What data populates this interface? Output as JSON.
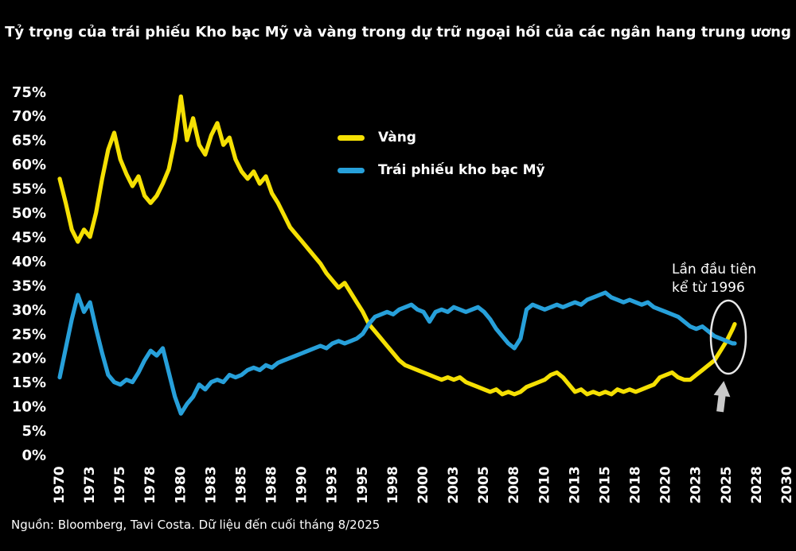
{
  "title": "Tỷ trọng của trái phiếu Kho bạc Mỹ và vàng trong dự trữ ngoại hối của các ngân hang trung ương",
  "source_note": "Nguồn: Bloomberg, Tavi Costa. Dữ liệu đến cuối tháng 8/2025",
  "annotation": {
    "line1": "Lần đầu tiên",
    "line2": "kể từ 1996"
  },
  "legend": [
    {
      "label": "Vàng",
      "color": "#f5e003"
    },
    {
      "label": "Trái phiếu kho bạc Mỹ",
      "color": "#27a0da"
    }
  ],
  "colors": {
    "background": "#000000",
    "text": "#ffffff",
    "gold": "#f5e003",
    "treasury": "#27a0da",
    "ellipse": "#e8e8e8",
    "arrow": "#c9c9c9"
  },
  "chart_data": {
    "type": "line",
    "title": "Tỷ trọng của trái phiếu Kho bạc Mỹ và vàng trong dự trữ ngoại hối của các ngân hang trung ương",
    "xlabel": "",
    "ylabel": "",
    "ylim": [
      0,
      75
    ],
    "xlim": [
      1970,
      2030
    ],
    "grid": false,
    "legend_position": "upper-center-left",
    "y_ticks": [
      0,
      5,
      10,
      15,
      20,
      25,
      30,
      35,
      40,
      45,
      50,
      55,
      60,
      65,
      70,
      75
    ],
    "y_tick_suffix": "%",
    "x_tick_labels": [
      "1970",
      "1973",
      "1975",
      "1978",
      "1980",
      "1983",
      "1985",
      "1988",
      "1990",
      "1993",
      "1995",
      "1998",
      "2000",
      "2003",
      "2005",
      "2008",
      "2010",
      "2013",
      "2015",
      "2018",
      "2020",
      "2023",
      "2025",
      "2028",
      "2030"
    ],
    "x_tick_interval_years": 2.5,
    "x": [
      1970,
      1970.5,
      1971,
      1971.5,
      1972,
      1972.5,
      1973,
      1973.5,
      1974,
      1974.5,
      1975,
      1975.5,
      1976,
      1976.5,
      1977,
      1977.5,
      1978,
      1978.5,
      1979,
      1979.5,
      1980,
      1980.5,
      1981,
      1981.5,
      1982,
      1982.5,
      1983,
      1983.5,
      1984,
      1984.5,
      1985,
      1985.5,
      1986,
      1986.5,
      1987,
      1987.5,
      1988,
      1988.5,
      1989,
      1989.5,
      1990,
      1990.5,
      1991,
      1991.5,
      1992,
      1992.5,
      1993,
      1993.5,
      1994,
      1994.5,
      1995,
      1995.5,
      1996,
      1996.5,
      1997,
      1997.5,
      1998,
      1998.5,
      1999,
      1999.5,
      2000,
      2000.5,
      2001,
      2001.5,
      2002,
      2002.5,
      2003,
      2003.5,
      2004,
      2004.5,
      2005,
      2005.5,
      2006,
      2006.5,
      2007,
      2007.5,
      2008,
      2008.5,
      2009,
      2009.5,
      2010,
      2010.5,
      2011,
      2011.5,
      2012,
      2012.5,
      2013,
      2013.5,
      2014,
      2014.5,
      2015,
      2015.5,
      2016,
      2016.5,
      2017,
      2017.5,
      2018,
      2018.5,
      2019,
      2019.5,
      2020,
      2020.5,
      2021,
      2021.5,
      2022,
      2022.5,
      2023,
      2023.5,
      2024,
      2024.5,
      2025,
      2025.5,
      2025.67
    ],
    "series": [
      {
        "name": "Vàng",
        "color": "#f5e003",
        "values": [
          57,
          52,
          46.5,
          44,
          46.5,
          45,
          50,
          57,
          63,
          66.5,
          61,
          58,
          55.5,
          57.5,
          53.5,
          52,
          53.5,
          56,
          59,
          65,
          74,
          65,
          69.5,
          64,
          62,
          66,
          68.5,
          64,
          65.5,
          61,
          58.5,
          57,
          58.5,
          56,
          57.5,
          54,
          52,
          49.5,
          47,
          45.5,
          44,
          42.5,
          41,
          39.5,
          37.5,
          36,
          34.5,
          35.5,
          33.5,
          31.5,
          29.5,
          27,
          25.5,
          24,
          22.5,
          21,
          19.5,
          18.5,
          18,
          17.5,
          17,
          16.5,
          16,
          15.5,
          16,
          15.5,
          16,
          15,
          14.5,
          14,
          13.5,
          13,
          13.5,
          12.5,
          13,
          12.5,
          13,
          14,
          14.5,
          15,
          15.5,
          16.5,
          17,
          16,
          14.5,
          13,
          13.5,
          12.5,
          13,
          12.5,
          13,
          12.5,
          13.5,
          13,
          13.5,
          13,
          13.5,
          14,
          14.5,
          16,
          16.5,
          17,
          16,
          15.5,
          15.5,
          16.5,
          17.5,
          18.5,
          19.5,
          21.5,
          23.5,
          26,
          27
        ]
      },
      {
        "name": "Trái phiếu kho bạc Mỹ",
        "color": "#27a0da",
        "values": [
          16,
          22,
          28,
          33,
          29.5,
          31.5,
          26,
          21,
          16.5,
          15,
          14.5,
          15.5,
          15,
          17,
          19.5,
          21.5,
          20.5,
          22,
          17,
          12,
          8.5,
          10.5,
          12,
          14.5,
          13.5,
          15,
          15.5,
          15,
          16.5,
          16,
          16.5,
          17.5,
          18,
          17.5,
          18.5,
          18,
          19,
          19.5,
          20,
          20.5,
          21,
          21.5,
          22,
          22.5,
          22,
          23,
          23.5,
          23,
          23.5,
          24,
          25,
          27,
          28.5,
          29,
          29.5,
          29,
          30,
          30.5,
          31,
          30,
          29.5,
          27.5,
          29.5,
          30,
          29.5,
          30.5,
          30,
          29.5,
          30,
          30.5,
          29.5,
          28,
          26,
          24.5,
          23,
          22,
          24,
          30,
          31,
          30.5,
          30,
          30.5,
          31,
          30.5,
          31,
          31.5,
          31,
          32,
          32.5,
          33,
          33.5,
          32.5,
          32,
          31.5,
          32,
          31.5,
          31,
          31.5,
          30.5,
          30,
          29.5,
          29,
          28.5,
          27.5,
          26.5,
          26,
          26.5,
          25.5,
          24.5,
          24,
          23.5,
          23,
          23
        ]
      }
    ],
    "annotations": [
      {
        "text": "Lần đầu tiên kể từ 1996",
        "target_year": 2025,
        "target_value": 24,
        "shape": "ellipse-with-up-arrow"
      }
    ]
  }
}
